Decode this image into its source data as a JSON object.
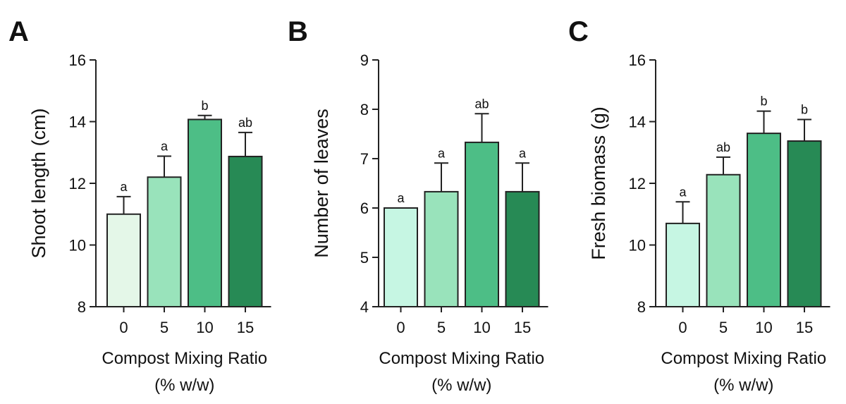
{
  "chart_data": [
    {
      "panel": "A",
      "type": "bar",
      "categories": [
        "0",
        "5",
        "10",
        "15"
      ],
      "values": [
        11.0,
        12.2,
        14.07,
        12.87
      ],
      "errors": [
        0.57,
        0.68,
        0.13,
        0.78
      ],
      "significance": [
        "a",
        "a",
        "b",
        "ab"
      ],
      "ylabel": "Shoot length (cm)",
      "xlabel": [
        "Compost Mixing Ratio",
        "(% w/w)"
      ],
      "ylim": [
        8,
        16
      ],
      "yticks": [
        8,
        10,
        12,
        14,
        16
      ],
      "colors": [
        "#e4f7e8",
        "#99e3bb",
        "#4dbe86",
        "#278a55"
      ]
    },
    {
      "panel": "B",
      "type": "bar",
      "categories": [
        "0",
        "5",
        "10",
        "15"
      ],
      "values": [
        6.0,
        6.33,
        7.33,
        6.33
      ],
      "errors": [
        0.0,
        0.58,
        0.58,
        0.58
      ],
      "significance": [
        "a",
        "a",
        "ab",
        "a"
      ],
      "ylabel": "Number of leaves",
      "xlabel": [
        "Compost Mixing Ratio",
        "(% w/w)"
      ],
      "ylim": [
        4,
        9
      ],
      "yticks": [
        4,
        5,
        6,
        7,
        8,
        9
      ],
      "colors": [
        "#c6f6e3",
        "#99e3bb",
        "#4dbe86",
        "#278a55"
      ]
    },
    {
      "panel": "C",
      "type": "bar",
      "categories": [
        "0",
        "5",
        "10",
        "15"
      ],
      "values": [
        10.7,
        12.28,
        13.62,
        13.37
      ],
      "errors": [
        0.7,
        0.57,
        0.72,
        0.7
      ],
      "significance": [
        "a",
        "ab",
        "b",
        "b"
      ],
      "ylabel": "Fresh biomass (g)",
      "xlabel": [
        "Compost Mixing Ratio",
        "(% w/w)"
      ],
      "ylim": [
        8,
        16
      ],
      "yticks": [
        8,
        10,
        12,
        14,
        16
      ],
      "colors": [
        "#c6f6e3",
        "#99e3bb",
        "#4dbe86",
        "#278a55"
      ]
    }
  ]
}
